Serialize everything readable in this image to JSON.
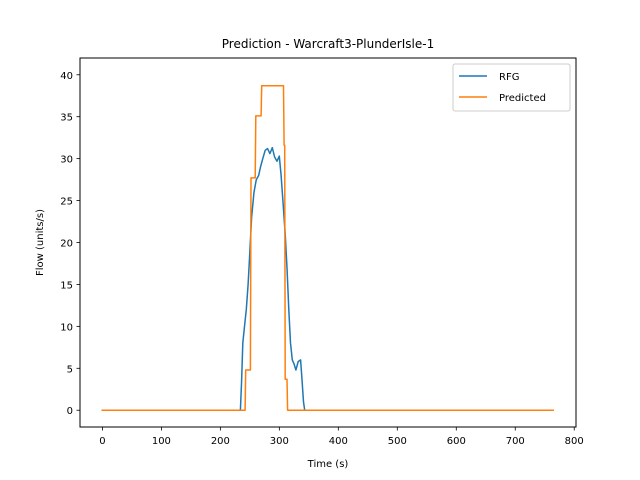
{
  "chart_data": {
    "type": "line",
    "title": "Prediction - Warcraft3-PlunderIsle-1",
    "xlabel": "Time (s)",
    "ylabel": "Flow (units/s)",
    "xlim": [
      -38,
      803
    ],
    "ylim": [
      -2,
      42
    ],
    "xticks": [
      0,
      100,
      200,
      300,
      400,
      500,
      600,
      700,
      800
    ],
    "yticks": [
      0,
      5,
      10,
      15,
      20,
      25,
      30,
      35,
      40
    ],
    "grid": false,
    "legend_position": "top-right",
    "series": [
      {
        "name": "RFG",
        "color": "#1f77b4",
        "points": [
          [
            0,
            0
          ],
          [
            234,
            0
          ],
          [
            236,
            3.5
          ],
          [
            238,
            8
          ],
          [
            241,
            10
          ],
          [
            244,
            12
          ],
          [
            247,
            15
          ],
          [
            250,
            19
          ],
          [
            253,
            23
          ],
          [
            257,
            26
          ],
          [
            261,
            27.5
          ],
          [
            265,
            28
          ],
          [
            268,
            29
          ],
          [
            272,
            30
          ],
          [
            276,
            31
          ],
          [
            280,
            31.2
          ],
          [
            284,
            30.6
          ],
          [
            288,
            31.3
          ],
          [
            292,
            30.2
          ],
          [
            296,
            29.7
          ],
          [
            300,
            30.3
          ],
          [
            303,
            28
          ],
          [
            306,
            25
          ],
          [
            310,
            21
          ],
          [
            313,
            17
          ],
          [
            316,
            12
          ],
          [
            319,
            8
          ],
          [
            322,
            6
          ],
          [
            325,
            5.5
          ],
          [
            328,
            4.8
          ],
          [
            332,
            5.8
          ],
          [
            336,
            6
          ],
          [
            338,
            4
          ],
          [
            341,
            1
          ],
          [
            343,
            0
          ],
          [
            764,
            0
          ]
        ]
      },
      {
        "name": "Predicted",
        "color": "#ff7f0e",
        "points": [
          [
            0,
            0
          ],
          [
            242,
            0
          ],
          [
            243,
            4.8
          ],
          [
            251,
            4.8
          ],
          [
            252,
            27.7
          ],
          [
            259,
            27.7
          ],
          [
            260,
            35.1
          ],
          [
            269,
            35.1
          ],
          [
            270,
            38.7
          ],
          [
            307,
            38.7
          ],
          [
            308,
            31.6
          ],
          [
            309,
            31.6
          ],
          [
            310,
            3.7
          ],
          [
            313,
            3.7
          ],
          [
            314,
            0
          ],
          [
            764,
            0
          ]
        ]
      }
    ]
  }
}
